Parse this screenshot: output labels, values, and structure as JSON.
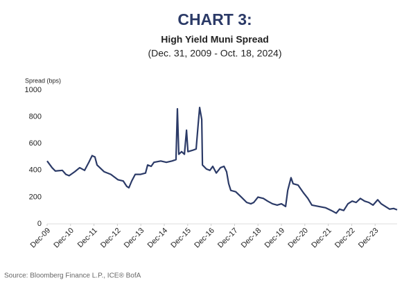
{
  "chart_data": {
    "type": "line",
    "title": "CHART 3:",
    "subtitle": "High Yield Muni Spread",
    "date_range": "(Dec. 31, 2009 - Oct. 18, 2024)",
    "y_label": "Spread (bps)",
    "source": "Source: Bloomberg Finance L.P., ICE® BofA",
    "color": "#2b3a67",
    "xlim": [
      2009.92,
      2024.86
    ],
    "ylim": [
      0,
      1000
    ],
    "yticks": [
      0,
      200,
      400,
      600,
      800,
      1000
    ],
    "xticks": [
      {
        "value": 2009.92,
        "label": "Dec-09"
      },
      {
        "value": 2010.92,
        "label": "Dec-10"
      },
      {
        "value": 2011.92,
        "label": "Dec-11"
      },
      {
        "value": 2012.92,
        "label": "Dec-12"
      },
      {
        "value": 2013.92,
        "label": "Dec-13"
      },
      {
        "value": 2014.92,
        "label": "Dec-14"
      },
      {
        "value": 2015.92,
        "label": "Dec-15"
      },
      {
        "value": 2016.92,
        "label": "Dec-16"
      },
      {
        "value": 2017.92,
        "label": "Dec-17"
      },
      {
        "value": 2018.92,
        "label": "Dec-18"
      },
      {
        "value": 2019.92,
        "label": "Dec-19"
      },
      {
        "value": 2020.92,
        "label": "Dec-20"
      },
      {
        "value": 2021.92,
        "label": "Dec-21"
      },
      {
        "value": 2022.92,
        "label": "Dec-22"
      },
      {
        "value": 2023.92,
        "label": "Dec-23"
      }
    ],
    "x": [
      2009.92,
      2010.13,
      2010.27,
      2010.57,
      2010.72,
      2010.86,
      2011.1,
      2011.31,
      2011.52,
      2011.7,
      2011.84,
      2011.96,
      2012.05,
      2012.35,
      2012.64,
      2012.94,
      2013.17,
      2013.32,
      2013.41,
      2013.53,
      2013.68,
      2013.91,
      2014.12,
      2014.21,
      2014.36,
      2014.48,
      2014.77,
      2015.01,
      2015.25,
      2015.42,
      2015.48,
      2015.54,
      2015.66,
      2015.78,
      2015.87,
      2015.93,
      2016.13,
      2016.28,
      2016.37,
      2016.43,
      2016.52,
      2016.55,
      2016.72,
      2016.87,
      2016.99,
      2017.14,
      2017.32,
      2017.47,
      2017.58,
      2017.67,
      2017.76,
      2017.97,
      2018.21,
      2018.44,
      2018.62,
      2018.74,
      2018.92,
      2019.15,
      2019.33,
      2019.54,
      2019.74,
      2019.92,
      2020.1,
      2020.19,
      2020.33,
      2020.42,
      2020.63,
      2020.87,
      2021.05,
      2021.22,
      2021.52,
      2021.81,
      2022.05,
      2022.26,
      2022.4,
      2022.58,
      2022.76,
      2022.94,
      2023.11,
      2023.29,
      2023.47,
      2023.65,
      2023.83,
      2024.03,
      2024.18,
      2024.36,
      2024.54,
      2024.71,
      2024.86
    ],
    "values": [
      470,
      420,
      395,
      400,
      370,
      360,
      390,
      420,
      400,
      460,
      510,
      500,
      440,
      390,
      370,
      330,
      320,
      280,
      270,
      320,
      370,
      370,
      380,
      440,
      430,
      460,
      470,
      460,
      470,
      480,
      860,
      520,
      540,
      520,
      700,
      540,
      550,
      560,
      750,
      870,
      780,
      440,
      410,
      400,
      430,
      380,
      420,
      430,
      390,
      300,
      250,
      240,
      200,
      160,
      150,
      160,
      200,
      190,
      170,
      150,
      140,
      150,
      130,
      250,
      345,
      300,
      290,
      230,
      190,
      140,
      130,
      120,
      100,
      80,
      110,
      100,
      150,
      170,
      160,
      190,
      170,
      160,
      140,
      180,
      150,
      130,
      110,
      115,
      105
    ]
  }
}
